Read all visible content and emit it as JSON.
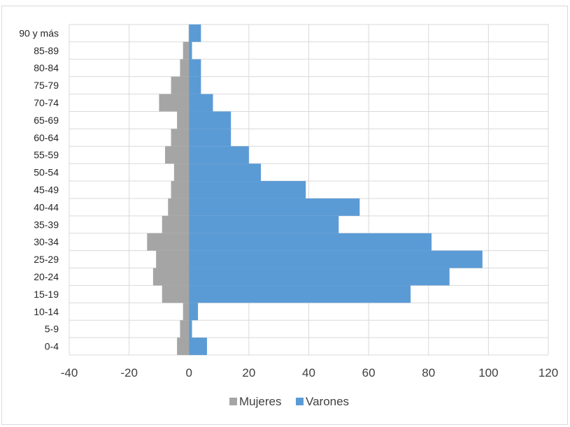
{
  "chart_data": {
    "type": "bar",
    "orientation": "horizontal",
    "categories": [
      "0-4",
      "5-9",
      "10-14",
      "15-19",
      "20-24",
      "25-29",
      "30-34",
      "35-39",
      "40-44",
      "45-49",
      "50-54",
      "55-59",
      "60-64",
      "65-69",
      "70-74",
      "75-79",
      "80-84",
      "85-89",
      "90 y más"
    ],
    "series": [
      {
        "name": "Mujeres",
        "color": "#a5a5a5",
        "values": [
          -4,
          -3,
          -2,
          -9,
          -12,
          -11,
          -14,
          -9,
          -7,
          -6,
          -5,
          -8,
          -6,
          -4,
          -10,
          -6,
          -3,
          -2,
          0
        ]
      },
      {
        "name": "Varones",
        "color": "#5b9bd5",
        "values": [
          6,
          1,
          3,
          74,
          87,
          98,
          81,
          50,
          57,
          39,
          24,
          20,
          14,
          14,
          8,
          4,
          4,
          1,
          4
        ]
      }
    ],
    "xlim": [
      -40,
      120
    ],
    "xticks": [
      "-40",
      "-20",
      "0",
      "20",
      "40",
      "60",
      "80",
      "100",
      "120"
    ],
    "grid": true,
    "legend_position": "bottom"
  }
}
